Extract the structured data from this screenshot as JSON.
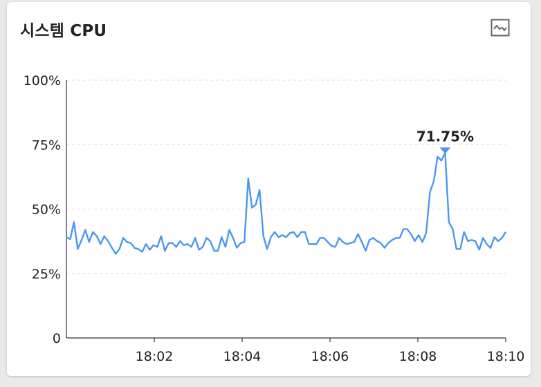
{
  "card": {
    "title": "시스템 CPU",
    "icon": "line-chart-icon"
  },
  "chart_data": {
    "type": "line",
    "ylim": [
      0,
      100
    ],
    "y_ticks": [
      "0",
      "25%",
      "50%",
      "75%",
      "100%"
    ],
    "y_tick_values": [
      0,
      25,
      50,
      75,
      100
    ],
    "x_ticks": [
      "18:02",
      "18:04",
      "18:06",
      "18:08",
      "18:10"
    ],
    "x_tick_values": [
      "18:02",
      "18:04",
      "18:06",
      "18:08",
      "18:10"
    ],
    "x_range": [
      "18:00",
      "18:10"
    ],
    "grid": "horizontal dashed",
    "legend": "none",
    "series": [
      {
        "color": "#4a97f0",
        "x_start": "18:00",
        "x_end": "18:10",
        "values": [
          39.1,
          38.3,
          44.9,
          34.5,
          38,
          41.9,
          37.2,
          41.1,
          39.5,
          36.4,
          39.5,
          37.6,
          35,
          32.6,
          34.5,
          38.8,
          37.2,
          36.8,
          34.9,
          34.5,
          33.4,
          36.4,
          34.2,
          36,
          35.3,
          39.5,
          33.8,
          36.8,
          36.8,
          35.3,
          37.6,
          36,
          36.4,
          35.3,
          38.8,
          34.2,
          35.3,
          38.8,
          37.6,
          33.8,
          33.8,
          39.1,
          35.3,
          41.9,
          38.8,
          35,
          36.8,
          37.2,
          61.9,
          50.5,
          51.7,
          57.4,
          39.5,
          34.5,
          39.1,
          41.1,
          39.1,
          39.9,
          39.1,
          40.7,
          41.1,
          39.1,
          41.1,
          41.1,
          36.4,
          36.4,
          36.4,
          38.8,
          38.8,
          37.2,
          35.7,
          35.3,
          38.8,
          37.2,
          36.4,
          36.8,
          37.2,
          40.3,
          37.2,
          33.8,
          38,
          38.8,
          37.6,
          36.8,
          35,
          36.8,
          38,
          38.8,
          38.8,
          42.2,
          42.2,
          40.3,
          37.6,
          39.9,
          37.2,
          40.7,
          56.6,
          60.8,
          70.3,
          68.8,
          71.75,
          44.9,
          42.2,
          34.5,
          34.5,
          41.1,
          37.6,
          38,
          37.6,
          34.2,
          38.8,
          36.4,
          34.9,
          39.1,
          37.6,
          38.8,
          41.1
        ],
        "peak": {
          "value": 71.75,
          "label": "71.75%"
        }
      }
    ]
  }
}
